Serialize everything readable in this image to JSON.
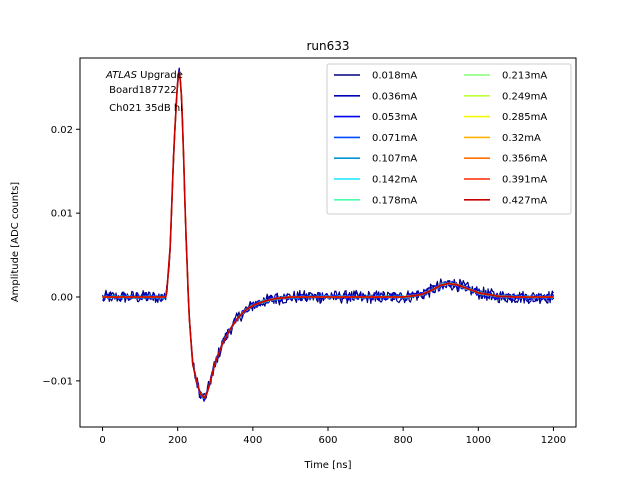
{
  "chart_data": {
    "type": "line",
    "title": "run633",
    "xlabel": "Time [ns]",
    "ylabel": "Amplitude [ADC counts]",
    "xlim": [
      -60,
      1260
    ],
    "ylim": [
      -0.0155,
      0.0285
    ],
    "xticks": [
      0,
      200,
      400,
      600,
      800,
      1000,
      1200
    ],
    "yticks": [
      -0.01,
      0.0,
      0.01,
      0.02
    ],
    "ytick_labels": [
      "−0.01",
      "0.00",
      "0.01",
      "0.02"
    ],
    "grid": false,
    "legend_position": "top-right",
    "legend_columns": 2,
    "annotation": {
      "italic": "ATLAS",
      "line1_rest": " Upgrade",
      "line2": " Board187722",
      "line3": " Ch021 35dB hi"
    },
    "x": [
      0,
      170,
      180,
      190,
      200,
      205,
      210,
      215,
      220,
      230,
      240,
      250,
      260,
      270,
      275,
      280,
      290,
      300,
      320,
      340,
      360,
      380,
      400,
      430,
      460,
      500,
      550,
      600,
      700,
      800,
      850,
      880,
      900,
      920,
      940,
      960,
      1000,
      1050,
      1100,
      1200
    ],
    "series": [
      {
        "name": "0.018mA",
        "color": "#00007f",
        "values": [
          0.0,
          0.0,
          0.006,
          0.018,
          0.026,
          0.027,
          0.024,
          0.018,
          0.01,
          -0.002,
          -0.008,
          -0.01,
          -0.0115,
          -0.012,
          -0.0118,
          -0.0112,
          -0.0095,
          -0.0078,
          -0.0055,
          -0.0038,
          -0.0025,
          -0.0016,
          -0.001,
          -0.0005,
          -0.0002,
          0.0,
          0.0,
          0.0,
          0.0,
          0.0,
          0.0003,
          0.0009,
          0.0014,
          0.0016,
          0.0015,
          0.0012,
          0.0005,
          0.0001,
          0.0,
          0.0
        ]
      },
      {
        "name": "0.036mA",
        "color": "#0000b5",
        "values": [
          0.0,
          0.0,
          0.006,
          0.018,
          0.026,
          0.027,
          0.024,
          0.018,
          0.01,
          -0.002,
          -0.008,
          -0.01,
          -0.0115,
          -0.012,
          -0.0118,
          -0.0112,
          -0.0095,
          -0.0078,
          -0.0055,
          -0.0038,
          -0.0025,
          -0.0016,
          -0.001,
          -0.0005,
          -0.0002,
          0.0,
          0.0,
          0.0,
          0.0,
          0.0,
          0.0003,
          0.0009,
          0.0014,
          0.0016,
          0.0015,
          0.0012,
          0.0005,
          0.0001,
          0.0,
          0.0
        ]
      },
      {
        "name": "0.053mA",
        "color": "#0000f1",
        "values": [
          0.0,
          0.0,
          0.006,
          0.018,
          0.026,
          0.027,
          0.024,
          0.018,
          0.01,
          -0.002,
          -0.008,
          -0.01,
          -0.0115,
          -0.012,
          -0.0118,
          -0.0112,
          -0.0095,
          -0.0078,
          -0.0055,
          -0.0038,
          -0.0025,
          -0.0016,
          -0.001,
          -0.0005,
          -0.0002,
          0.0,
          0.0,
          0.0,
          0.0,
          0.0,
          0.0003,
          0.0009,
          0.0014,
          0.0016,
          0.0015,
          0.0012,
          0.0005,
          0.0001,
          0.0,
          0.0
        ]
      },
      {
        "name": "0.071mA",
        "color": "#004cff",
        "values": [
          0.0,
          0.0,
          0.006,
          0.018,
          0.026,
          0.027,
          0.024,
          0.018,
          0.01,
          -0.002,
          -0.008,
          -0.01,
          -0.0115,
          -0.012,
          -0.0118,
          -0.0112,
          -0.0095,
          -0.0078,
          -0.0055,
          -0.0038,
          -0.0025,
          -0.0016,
          -0.001,
          -0.0005,
          -0.0002,
          0.0,
          0.0,
          0.0,
          0.0,
          0.0,
          0.0003,
          0.0009,
          0.0014,
          0.0016,
          0.0015,
          0.0012,
          0.0005,
          0.0001,
          0.0,
          0.0
        ]
      },
      {
        "name": "0.107mA",
        "color": "#0098d4",
        "values": [
          0.0,
          0.0,
          0.006,
          0.018,
          0.026,
          0.027,
          0.024,
          0.018,
          0.01,
          -0.002,
          -0.008,
          -0.01,
          -0.0115,
          -0.012,
          -0.0118,
          -0.0112,
          -0.0095,
          -0.0078,
          -0.0055,
          -0.0038,
          -0.0025,
          -0.0016,
          -0.001,
          -0.0005,
          -0.0002,
          0.0,
          0.0,
          0.0,
          0.0,
          0.0,
          0.0003,
          0.0009,
          0.0014,
          0.0016,
          0.0015,
          0.0012,
          0.0005,
          0.0001,
          0.0,
          0.0
        ]
      },
      {
        "name": "0.142mA",
        "color": "#16e6ff",
        "values": [
          0.0,
          0.0,
          0.006,
          0.018,
          0.026,
          0.027,
          0.024,
          0.018,
          0.01,
          -0.002,
          -0.008,
          -0.01,
          -0.0115,
          -0.012,
          -0.0118,
          -0.0112,
          -0.0095,
          -0.0078,
          -0.0055,
          -0.0038,
          -0.0025,
          -0.0016,
          -0.001,
          -0.0005,
          -0.0002,
          0.0,
          0.0,
          0.0,
          0.0,
          0.0,
          0.0003,
          0.0009,
          0.0014,
          0.0016,
          0.0015,
          0.0012,
          0.0005,
          0.0001,
          0.0,
          0.0
        ]
      },
      {
        "name": "0.178mA",
        "color": "#49ffad",
        "values": [
          0.0,
          0.0,
          0.006,
          0.018,
          0.026,
          0.027,
          0.024,
          0.018,
          0.01,
          -0.002,
          -0.008,
          -0.01,
          -0.0115,
          -0.012,
          -0.0118,
          -0.0112,
          -0.0095,
          -0.0078,
          -0.0055,
          -0.0038,
          -0.0025,
          -0.0016,
          -0.001,
          -0.0005,
          -0.0002,
          0.0,
          0.0,
          0.0,
          0.0,
          0.0,
          0.0003,
          0.0009,
          0.0014,
          0.0016,
          0.0015,
          0.0012,
          0.0005,
          0.0001,
          0.0,
          0.0
        ]
      },
      {
        "name": "0.213mA",
        "color": "#83ff73",
        "values": [
          0.0,
          0.0,
          0.006,
          0.018,
          0.026,
          0.027,
          0.024,
          0.018,
          0.01,
          -0.002,
          -0.008,
          -0.01,
          -0.0115,
          -0.012,
          -0.0118,
          -0.0112,
          -0.0095,
          -0.0078,
          -0.0055,
          -0.0038,
          -0.0025,
          -0.0016,
          -0.001,
          -0.0005,
          -0.0002,
          0.0,
          0.0,
          0.0,
          0.0,
          0.0,
          0.0003,
          0.0009,
          0.0014,
          0.0016,
          0.0015,
          0.0012,
          0.0005,
          0.0001,
          0.0,
          0.0
        ]
      },
      {
        "name": "0.249mA",
        "color": "#bdff39",
        "values": [
          0.0,
          0.0,
          0.006,
          0.018,
          0.026,
          0.027,
          0.024,
          0.018,
          0.01,
          -0.002,
          -0.008,
          -0.01,
          -0.0115,
          -0.012,
          -0.0118,
          -0.0112,
          -0.0095,
          -0.0078,
          -0.0055,
          -0.0038,
          -0.0025,
          -0.0016,
          -0.001,
          -0.0005,
          -0.0002,
          0.0,
          0.0,
          0.0,
          0.0,
          0.0,
          0.0003,
          0.0009,
          0.0014,
          0.0016,
          0.0015,
          0.0012,
          0.0005,
          0.0001,
          0.0,
          0.0
        ]
      },
      {
        "name": "0.285mA",
        "color": "#f1f800",
        "values": [
          0.0,
          0.0,
          0.006,
          0.018,
          0.026,
          0.027,
          0.024,
          0.018,
          0.01,
          -0.002,
          -0.008,
          -0.01,
          -0.0115,
          -0.012,
          -0.0118,
          -0.0112,
          -0.0095,
          -0.0078,
          -0.0055,
          -0.0038,
          -0.0025,
          -0.0016,
          -0.001,
          -0.0005,
          -0.0002,
          0.0,
          0.0,
          0.0,
          0.0,
          0.0,
          0.0003,
          0.0009,
          0.0014,
          0.0016,
          0.0015,
          0.0012,
          0.0005,
          0.0001,
          0.0,
          0.0
        ]
      },
      {
        "name": "0.32mA",
        "color": "#ffb200",
        "values": [
          0.0,
          0.0,
          0.006,
          0.018,
          0.026,
          0.027,
          0.024,
          0.018,
          0.01,
          -0.002,
          -0.008,
          -0.01,
          -0.0115,
          -0.012,
          -0.0118,
          -0.0112,
          -0.0095,
          -0.0078,
          -0.0055,
          -0.0038,
          -0.0025,
          -0.0016,
          -0.001,
          -0.0005,
          -0.0002,
          0.0,
          0.0,
          0.0,
          0.0,
          0.0,
          0.0003,
          0.0009,
          0.0014,
          0.0016,
          0.0015,
          0.0012,
          0.0005,
          0.0001,
          0.0,
          0.0
        ]
      },
      {
        "name": "0.356mA",
        "color": "#ff7000",
        "values": [
          0.0,
          0.0,
          0.006,
          0.018,
          0.026,
          0.027,
          0.024,
          0.018,
          0.01,
          -0.002,
          -0.008,
          -0.01,
          -0.0115,
          -0.012,
          -0.0118,
          -0.0112,
          -0.0095,
          -0.0078,
          -0.0055,
          -0.0038,
          -0.0025,
          -0.0016,
          -0.001,
          -0.0005,
          -0.0002,
          0.0,
          0.0,
          0.0,
          0.0,
          0.0,
          0.0003,
          0.0009,
          0.0014,
          0.0016,
          0.0015,
          0.0012,
          0.0005,
          0.0001,
          0.0,
          0.0
        ]
      },
      {
        "name": "0.391mA",
        "color": "#ff2a00",
        "values": [
          0.0,
          0.0,
          0.006,
          0.018,
          0.026,
          0.027,
          0.024,
          0.018,
          0.01,
          -0.002,
          -0.008,
          -0.01,
          -0.0115,
          -0.012,
          -0.0118,
          -0.0112,
          -0.0095,
          -0.0078,
          -0.0055,
          -0.0038,
          -0.0025,
          -0.0016,
          -0.001,
          -0.0005,
          -0.0002,
          0.0,
          0.0,
          0.0,
          0.0,
          0.0,
          0.0003,
          0.0009,
          0.0014,
          0.0016,
          0.0015,
          0.0012,
          0.0005,
          0.0001,
          0.0,
          0.0
        ]
      },
      {
        "name": "0.427mA",
        "color": "#c60000",
        "values": [
          0.0,
          0.0,
          0.006,
          0.018,
          0.026,
          0.027,
          0.024,
          0.018,
          0.01,
          -0.002,
          -0.008,
          -0.01,
          -0.0115,
          -0.012,
          -0.0118,
          -0.0112,
          -0.0095,
          -0.0078,
          -0.0055,
          -0.0038,
          -0.0025,
          -0.0016,
          -0.001,
          -0.0005,
          -0.0002,
          0.0,
          0.0,
          0.0,
          0.0,
          0.0,
          0.0003,
          0.0009,
          0.0014,
          0.0016,
          0.0015,
          0.0012,
          0.0005,
          0.0001,
          0.0,
          0.0
        ]
      }
    ]
  }
}
